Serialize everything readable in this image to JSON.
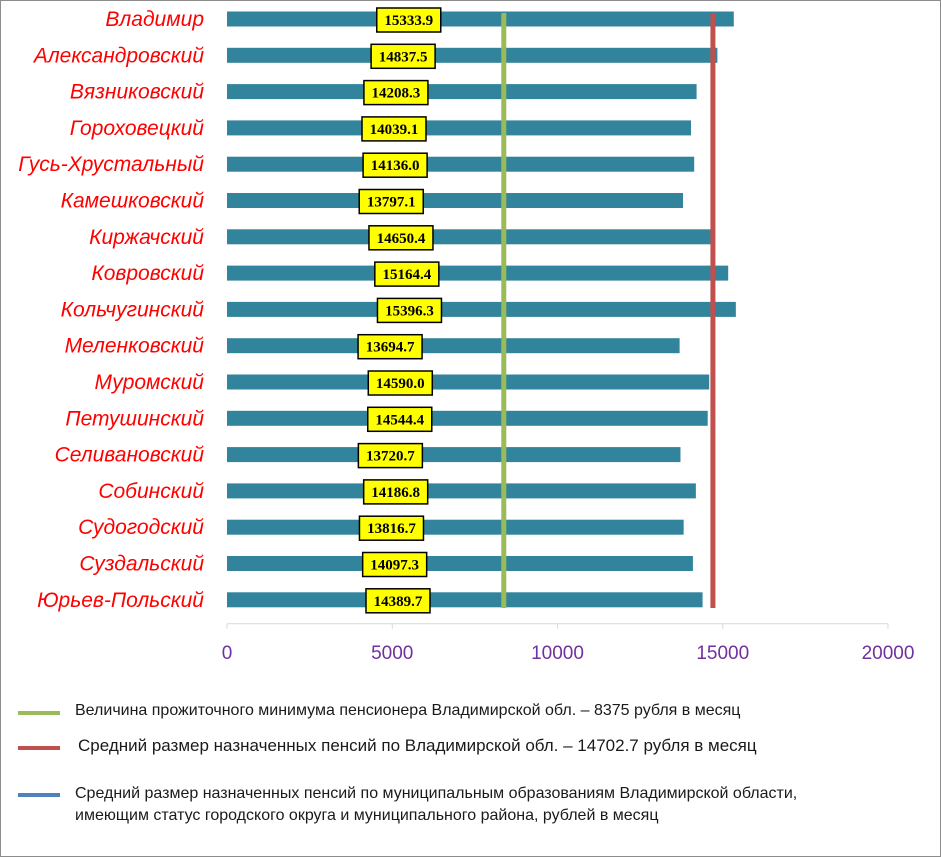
{
  "chart_data": {
    "type": "bar",
    "orientation": "horizontal",
    "categories": [
      "Владимир",
      "Александровский",
      "Вязниковский",
      "Гороховецкий",
      "Гусь-Хрустальный",
      "Камешковский",
      "Киржачский",
      "Ковровский",
      "Кольчугинский",
      "Меленковский",
      "Муромский",
      "Петушинский",
      "Селивановский",
      "Собинский",
      "Судогодский",
      "Суздальский",
      "Юрьев-Польский"
    ],
    "series": [
      {
        "name": "Средний размер назначенных пенсий по муниципальным образованиям Владимирской области, имеющим статус городского округа и муниципального района, рублей в месяц",
        "values": [
          15333.9,
          14837.5,
          14208.3,
          14039.1,
          14136.0,
          13797.1,
          14650.4,
          15164.4,
          15396.3,
          13694.7,
          14590.0,
          14544.4,
          13720.7,
          14186.8,
          13816.7,
          14097.3,
          14389.7
        ],
        "labels": [
          "15333.9",
          "14837.5",
          "14208.3",
          "14039.1",
          "14136.0",
          "13797.1",
          "14650.4",
          "15164.4",
          "15396.3",
          "13694.7",
          "14590.0",
          "14544.4",
          "13720.7",
          "14186.8",
          "13816.7",
          "14097.3",
          "14389.7"
        ],
        "color": "#31849b"
      }
    ],
    "reference_lines": [
      {
        "name": "Величина прожиточного минимума пенсионера Владимирской обл. – 8375 рубля в месяц",
        "value": 8375,
        "color": "#9bbb59"
      },
      {
        "name": "Средний размер назначенных пенсий по Владимирской обл. – 14702.7 рубля в месяц",
        "value": 14702.7,
        "color": "#c0504d"
      }
    ],
    "xlim": [
      0,
      20000
    ],
    "x_ticks": [
      "0",
      "5000",
      "10000",
      "15000",
      "20000"
    ],
    "grid": false,
    "legend_position": "bottom",
    "data_label_style": {
      "background": "#ffff00",
      "border": "#000000"
    }
  },
  "legend": [
    {
      "text": "Величина прожиточного минимума пенсионера Владимирской обл. – 8375 рубля в месяц",
      "color": "#9bbb59"
    },
    {
      "text": "Средний размер назначенных пенсий по Владимирской обл. – 14702.7 рубля в месяц",
      "color": "#c0504d"
    },
    {
      "text": "Средний размер назначенных пенсий по муниципальным образованиям Владимирской области, имеющим статус городского округа и муниципального района, рублей в месяц",
      "color": "#4f81bd"
    }
  ]
}
